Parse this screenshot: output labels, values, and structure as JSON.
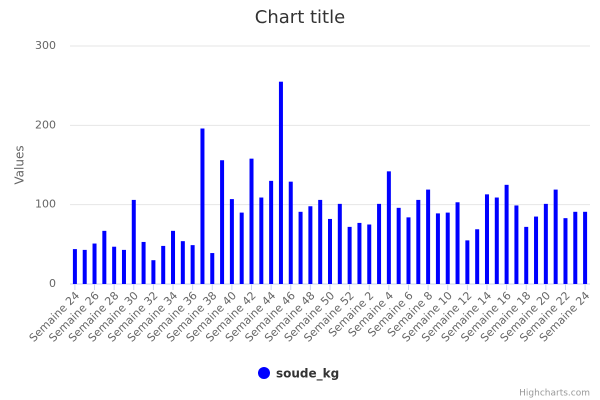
{
  "chart_data": {
    "type": "bar",
    "title": "Chart title",
    "y_label": "Values",
    "categories": [
      "Semaine 24",
      null,
      "Semaine 26",
      null,
      "Semaine 28",
      null,
      "Semaine 30",
      null,
      "Semaine 32",
      null,
      "Semaine 34",
      null,
      "Semaine 36",
      null,
      "Semaine 38",
      null,
      "Semaine 40",
      null,
      "Semaine 42",
      null,
      "Semaine 44",
      null,
      "Semaine 46",
      null,
      "Semaine 48",
      null,
      "Semaine 50",
      null,
      "Semaine 52",
      null,
      "Semaine 2",
      null,
      "Semaine 4",
      null,
      "Semaine 6",
      null,
      "Semaine 8",
      null,
      "Semaine 10",
      null,
      "Semaine 12",
      null,
      "Semaine 14",
      null,
      "Semaine 16",
      null,
      "Semaine 18",
      null,
      "Semaine 20",
      null,
      "Semaine 22",
      null,
      "Semaine 24"
    ],
    "series": [
      {
        "name": "soude_kg",
        "color": "#0000ff",
        "values": [
          44,
          43,
          51,
          67,
          47,
          43,
          106,
          53,
          30,
          48,
          67,
          54,
          49,
          196,
          39,
          156,
          107,
          90,
          158,
          109,
          130,
          255,
          129,
          91,
          98,
          106,
          82,
          101,
          72,
          77,
          75,
          101,
          142,
          96,
          84,
          106,
          119,
          89,
          90,
          103,
          55,
          69,
          113,
          109,
          125,
          99,
          72,
          85,
          101,
          119,
          83,
          91,
          91
        ]
      }
    ],
    "ylim": [
      0,
      300
    ],
    "yticks": [
      0,
      100,
      200,
      300
    ],
    "grid": true,
    "legend": "bottom",
    "credits": "Highcharts.com"
  }
}
